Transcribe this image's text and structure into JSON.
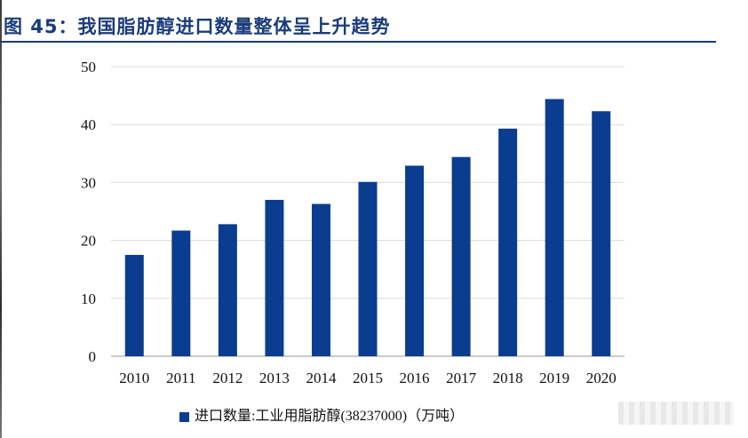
{
  "title": "图 45：我国脂肪醇进口数量整体呈上升趋势",
  "chart_data": {
    "type": "bar",
    "title": "",
    "xlabel": "",
    "ylabel": "",
    "categories": [
      "2010",
      "2011",
      "2012",
      "2013",
      "2014",
      "2015",
      "2016",
      "2017",
      "2018",
      "2019",
      "2020"
    ],
    "series": [
      {
        "name": "进口数量:工业用脂肪醇(38237000)（万吨）",
        "values": [
          17.5,
          21.7,
          22.8,
          27.0,
          26.3,
          30.1,
          32.9,
          34.4,
          39.3,
          44.4,
          42.3
        ],
        "color": "#0a3d8f"
      }
    ],
    "ylim": [
      0,
      50
    ],
    "yticks": [
      "0",
      "10",
      "20",
      "30",
      "40",
      "50"
    ],
    "grid": true,
    "legend_position": "bottom"
  }
}
